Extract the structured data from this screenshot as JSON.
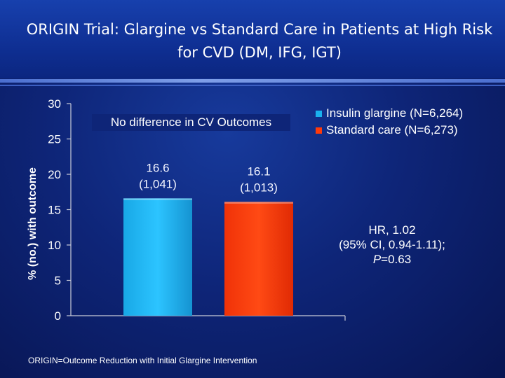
{
  "title": "ORIGIN Trial:  Glargine vs Standard Care in  Patients at High Risk\nfor CVD (DM, IFG, IGT)",
  "annotation": "No difference in CV Outcomes",
  "stats": {
    "hr": "HR, 1.02",
    "ci": "(95% CI, 0.94-1.11);",
    "p_letter": "P",
    "p_value": "=0.63"
  },
  "footnote": "ORIGIN=Outcome Reduction with Initial Glargine Intervention",
  "colors": {
    "background": "#0e2578",
    "series_glargine": "#1ab2ee",
    "series_standard": "#ff3a0a",
    "axis": "#c8cbd8"
  },
  "chart_data": {
    "type": "bar",
    "title": "",
    "xlabel": "",
    "ylabel": "% (no.) with outcome",
    "ylim": [
      0,
      30
    ],
    "yticks": [
      0,
      5,
      10,
      15,
      20,
      25,
      30
    ],
    "grid": false,
    "legend_position": "top-right",
    "series": [
      {
        "name": "Insulin glargine (N=6,264)",
        "value": 16.6,
        "label_line1": "16.6",
        "label_line2": "(1,041)",
        "color": "#1ab2ee"
      },
      {
        "name": "Standard care (N=6,273)",
        "value": 16.1,
        "label_line1": "16.1",
        "label_line2": "(1,013)",
        "color": "#ff3a0a"
      }
    ]
  }
}
